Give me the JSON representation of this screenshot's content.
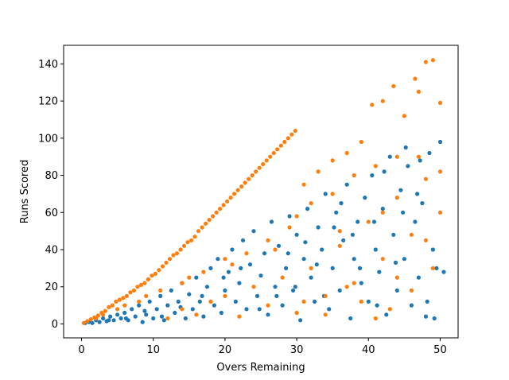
{
  "chart_data": {
    "type": "scatter",
    "xlabel": "Overs Remaining",
    "ylabel": "Runs Scored",
    "xlim": [
      -2.5,
      52.5
    ],
    "ylim": [
      -7.5,
      150
    ],
    "x_ticks": [
      0,
      10,
      20,
      30,
      40,
      50
    ],
    "y_ticks": [
      0,
      20,
      40,
      60,
      80,
      100,
      120,
      140
    ],
    "grid": false,
    "legend": "none",
    "series": [
      {
        "color": "#1f77b4",
        "points": [
          [
            0.5,
            0.5
          ],
          [
            1,
            1
          ],
          [
            1.5,
            0.5
          ],
          [
            2,
            2
          ],
          [
            2.5,
            1
          ],
          [
            3,
            3
          ],
          [
            3.5,
            1.5
          ],
          [
            4,
            4
          ],
          [
            4.5,
            2
          ],
          [
            5,
            5
          ],
          [
            5.5,
            3
          ],
          [
            6,
            6
          ],
          [
            6.5,
            2
          ],
          [
            7,
            8
          ],
          [
            7.5,
            4
          ],
          [
            8,
            10
          ],
          [
            8.5,
            1
          ],
          [
            9,
            5
          ],
          [
            9.5,
            12
          ],
          [
            10,
            3
          ],
          [
            10.5,
            8
          ],
          [
            11,
            15
          ],
          [
            11.5,
            2
          ],
          [
            12,
            10
          ],
          [
            12.5,
            18
          ],
          [
            13,
            6
          ],
          [
            13.5,
            12
          ],
          [
            14,
            22
          ],
          [
            14.5,
            3
          ],
          [
            15,
            16
          ],
          [
            15.5,
            8
          ],
          [
            16,
            25
          ],
          [
            16.5,
            12
          ],
          [
            17,
            4
          ],
          [
            17.5,
            20
          ],
          [
            18,
            30
          ],
          [
            18.5,
            10
          ],
          [
            19,
            35
          ],
          [
            19.5,
            6
          ],
          [
            20,
            18
          ],
          [
            20.5,
            28
          ],
          [
            21,
            40
          ],
          [
            21.5,
            12
          ],
          [
            22,
            22
          ],
          [
            22.5,
            45
          ],
          [
            23,
            8
          ],
          [
            23.5,
            32
          ],
          [
            24,
            50
          ],
          [
            24.5,
            15
          ],
          [
            25,
            26
          ],
          [
            25.5,
            38
          ],
          [
            26,
            5
          ],
          [
            26.5,
            55
          ],
          [
            27,
            20
          ],
          [
            27.5,
            42
          ],
          [
            28,
            10
          ],
          [
            28.5,
            30
          ],
          [
            29,
            58
          ],
          [
            29.5,
            18
          ],
          [
            30,
            48
          ],
          [
            30.5,
            2
          ],
          [
            31,
            35
          ],
          [
            31.5,
            62
          ],
          [
            32,
            25
          ],
          [
            32.5,
            12
          ],
          [
            33,
            52
          ],
          [
            33.5,
            40
          ],
          [
            34,
            70
          ],
          [
            34.5,
            8
          ],
          [
            35,
            30
          ],
          [
            35.5,
            60
          ],
          [
            36,
            18
          ],
          [
            36.5,
            45
          ],
          [
            37,
            75
          ],
          [
            37.5,
            3
          ],
          [
            38,
            35
          ],
          [
            38.5,
            55
          ],
          [
            39,
            22
          ],
          [
            39.5,
            68
          ],
          [
            40,
            12
          ],
          [
            40.5,
            80
          ],
          [
            41,
            40
          ],
          [
            41.5,
            28
          ],
          [
            42,
            62
          ],
          [
            42.5,
            5
          ],
          [
            43,
            90
          ],
          [
            43.5,
            48
          ],
          [
            44,
            18
          ],
          [
            44.5,
            72
          ],
          [
            45,
            35
          ],
          [
            45.5,
            85
          ],
          [
            46,
            10
          ],
          [
            46.5,
            55
          ],
          [
            47,
            25
          ],
          [
            47.5,
            65
          ],
          [
            48,
            4
          ],
          [
            48.5,
            92
          ],
          [
            49,
            40
          ],
          [
            49.5,
            30
          ],
          [
            50,
            98
          ],
          [
            50.5,
            28
          ],
          [
            42.2,
            82
          ],
          [
            44.8,
            60
          ],
          [
            46.8,
            70
          ],
          [
            48.2,
            12
          ],
          [
            40.8,
            55
          ],
          [
            37.8,
            48
          ],
          [
            35.2,
            52
          ],
          [
            32.8,
            32
          ],
          [
            29.8,
            20
          ],
          [
            27.2,
            15
          ],
          [
            24.8,
            8
          ],
          [
            22.2,
            30
          ],
          [
            19.8,
            25
          ],
          [
            16.8,
            15
          ],
          [
            13.8,
            9
          ],
          [
            11.2,
            4
          ],
          [
            8.8,
            7
          ],
          [
            6.2,
            3
          ],
          [
            3.8,
            2
          ],
          [
            45.2,
            95
          ],
          [
            47.2,
            88
          ],
          [
            49.2,
            3
          ],
          [
            43.8,
            33
          ],
          [
            41.2,
            10
          ],
          [
            38.8,
            30
          ],
          [
            36.2,
            65
          ],
          [
            33.8,
            15
          ],
          [
            31.2,
            44
          ],
          [
            28.8,
            38
          ]
        ]
      },
      {
        "color": "#ff7f0e",
        "points": [
          [
            0.3,
            0.5
          ],
          [
            0.8,
            1.5
          ],
          [
            1.3,
            2.5
          ],
          [
            1.8,
            3.5
          ],
          [
            2.3,
            4.5
          ],
          [
            2.8,
            6
          ],
          [
            3.3,
            7
          ],
          [
            3.8,
            9
          ],
          [
            4.3,
            10
          ],
          [
            4.8,
            12
          ],
          [
            5.3,
            13
          ],
          [
            5.8,
            14
          ],
          [
            6.3,
            15
          ],
          [
            6.8,
            17
          ],
          [
            7.3,
            18
          ],
          [
            7.8,
            20
          ],
          [
            8.3,
            21
          ],
          [
            8.8,
            22
          ],
          [
            9.3,
            24
          ],
          [
            9.8,
            26
          ],
          [
            10.3,
            27
          ],
          [
            10.8,
            29
          ],
          [
            11.3,
            31
          ],
          [
            11.8,
            33
          ],
          [
            12.3,
            35
          ],
          [
            12.8,
            37
          ],
          [
            13.3,
            38
          ],
          [
            13.8,
            40
          ],
          [
            14.3,
            42
          ],
          [
            14.8,
            44
          ],
          [
            15.3,
            45
          ],
          [
            15.8,
            47
          ],
          [
            16.3,
            50
          ],
          [
            16.8,
            52
          ],
          [
            17.3,
            54
          ],
          [
            17.8,
            56
          ],
          [
            18.3,
            58
          ],
          [
            18.8,
            60
          ],
          [
            19.3,
            62
          ],
          [
            19.8,
            64
          ],
          [
            20.3,
            66
          ],
          [
            20.8,
            68
          ],
          [
            21.3,
            70
          ],
          [
            21.8,
            72
          ],
          [
            22.3,
            74
          ],
          [
            22.8,
            76
          ],
          [
            23.3,
            78
          ],
          [
            23.8,
            80
          ],
          [
            24.3,
            82
          ],
          [
            24.8,
            84
          ],
          [
            25.3,
            86
          ],
          [
            25.8,
            88
          ],
          [
            26.3,
            90
          ],
          [
            26.8,
            92
          ],
          [
            27.3,
            94
          ],
          [
            27.8,
            96
          ],
          [
            28.3,
            98
          ],
          [
            28.8,
            100
          ],
          [
            29.3,
            102
          ],
          [
            29.8,
            104
          ],
          [
            12,
            3
          ],
          [
            14,
            8
          ],
          [
            16,
            5
          ],
          [
            18,
            12
          ],
          [
            20,
            15
          ],
          [
            22,
            4
          ],
          [
            24,
            20
          ],
          [
            26,
            10
          ],
          [
            28,
            25
          ],
          [
            30,
            6
          ],
          [
            32,
            30
          ],
          [
            34,
            15
          ],
          [
            36,
            42
          ],
          [
            38,
            22
          ],
          [
            40,
            55
          ],
          [
            42,
            35
          ],
          [
            44,
            68
          ],
          [
            46,
            48
          ],
          [
            48,
            78
          ],
          [
            50,
            60
          ],
          [
            31,
            75
          ],
          [
            33,
            82
          ],
          [
            35,
            88
          ],
          [
            37,
            92
          ],
          [
            39,
            98
          ],
          [
            40.5,
            118
          ],
          [
            42,
            120
          ],
          [
            43.5,
            128
          ],
          [
            45,
            112
          ],
          [
            46.5,
            132
          ],
          [
            48,
            141
          ],
          [
            49,
            142
          ],
          [
            50,
            119
          ],
          [
            47,
            125
          ],
          [
            44,
            90
          ],
          [
            41,
            85
          ],
          [
            38,
            80
          ],
          [
            35,
            70
          ],
          [
            32,
            65
          ],
          [
            29,
            52
          ],
          [
            26,
            45
          ],
          [
            23,
            38
          ],
          [
            20,
            35
          ],
          [
            17,
            28
          ],
          [
            14,
            22
          ],
          [
            11,
            18
          ],
          [
            8,
            12
          ],
          [
            5,
            8
          ],
          [
            2,
            3
          ],
          [
            3,
            5
          ],
          [
            6,
            10
          ],
          [
            9,
            15
          ],
          [
            15,
            25
          ],
          [
            21,
            32
          ],
          [
            27,
            40
          ],
          [
            30,
            58
          ],
          [
            36,
            50
          ],
          [
            42,
            60
          ],
          [
            47,
            90
          ],
          [
            50,
            82
          ],
          [
            49,
            30
          ],
          [
            48,
            45
          ],
          [
            46,
            18
          ],
          [
            44,
            25
          ],
          [
            43,
            8
          ],
          [
            41,
            3
          ],
          [
            39,
            12
          ],
          [
            37,
            20
          ],
          [
            34,
            5
          ],
          [
            31,
            12
          ]
        ]
      }
    ]
  }
}
